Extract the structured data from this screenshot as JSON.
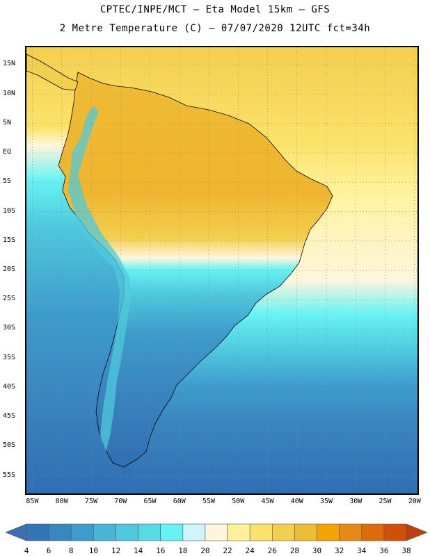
{
  "header": {
    "line1": "CPTEC/INPE/MCT –  Eta Model 15km – GFS",
    "line2": "2 Metre Temperature (C) – 07/07/2020 12UTC fct=34h"
  },
  "map": {
    "lon_range": [
      -86,
      -19.5
    ],
    "lat_range": [
      18,
      -58
    ],
    "lat_ticks": [
      "15N",
      "10N",
      "5N",
      "EQ",
      "5S",
      "10S",
      "15S",
      "20S",
      "25S",
      "30S",
      "35S",
      "40S",
      "45S",
      "50S",
      "55S"
    ],
    "lat_values": [
      15,
      10,
      5,
      0,
      -5,
      -10,
      -15,
      -20,
      -25,
      -30,
      -35,
      -40,
      -45,
      -50,
      -55
    ],
    "lon_ticks": [
      "85W",
      "80W",
      "75W",
      "70W",
      "65W",
      "60W",
      "55W",
      "50W",
      "45W",
      "40W",
      "35W",
      "30W",
      "25W",
      "20W"
    ],
    "lon_values": [
      -85,
      -80,
      -75,
      -70,
      -65,
      -60,
      -55,
      -50,
      -45,
      -40,
      -35,
      -30,
      -25,
      -20
    ]
  },
  "colorbar": {
    "levels": [
      "4",
      "6",
      "8",
      "10",
      "12",
      "14",
      "16",
      "18",
      "20",
      "22",
      "24",
      "26",
      "28",
      "30",
      "32",
      "34",
      "36",
      "38"
    ],
    "colors": [
      "#3a6fb0",
      "#2f76b8",
      "#3a86c0",
      "#3d9ccb",
      "#4ab4d6",
      "#4fc9de",
      "#56dbe6",
      "#66f3f3",
      "#cff4fb",
      "#fff6dd",
      "#fff29a",
      "#fbe36b",
      "#f3cf4e",
      "#efbc35",
      "#f0a500",
      "#e68a17",
      "#de6b0b",
      "#cf5009",
      "#c0410f"
    ]
  }
}
